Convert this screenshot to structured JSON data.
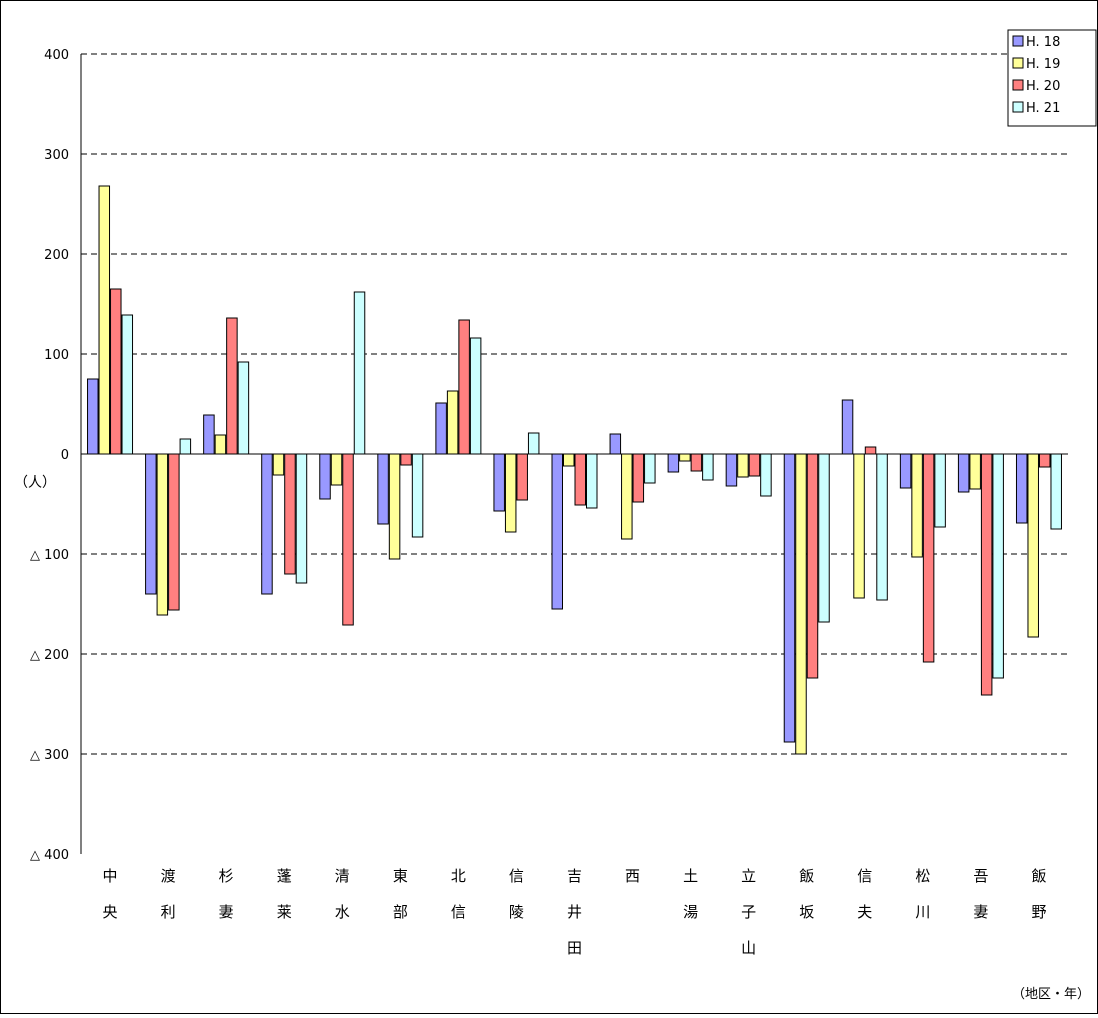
{
  "chart_data": {
    "type": "bar",
    "categories": [
      [
        "中",
        "央"
      ],
      [
        "渡",
        "利"
      ],
      [
        "杉",
        "妻"
      ],
      [
        "蓬",
        "莱"
      ],
      [
        "清",
        "水"
      ],
      [
        "東",
        "部"
      ],
      [
        "北",
        "信"
      ],
      [
        "信",
        "陵"
      ],
      [
        "吉",
        "井",
        "田"
      ],
      [
        "西"
      ],
      [
        "土",
        "湯"
      ],
      [
        "立",
        "子",
        "山"
      ],
      [
        "飯",
        "坂"
      ],
      [
        "信",
        "夫"
      ],
      [
        "松",
        "川"
      ],
      [
        "吾",
        "妻"
      ],
      [
        "飯",
        "野"
      ]
    ],
    "series": [
      {
        "name": "H. 18",
        "color": "#9999ff",
        "values": [
          75,
          -140,
          39,
          -140,
          -45,
          -70,
          51,
          -57,
          -155,
          20,
          -18,
          -32,
          -288,
          54,
          -34,
          -38,
          -69
        ]
      },
      {
        "name": "H. 19",
        "color": "#ffff99",
        "values": [
          268,
          -161,
          19,
          -21,
          -31,
          -105,
          63,
          -78,
          -12,
          -85,
          -7,
          -23,
          -300,
          -144,
          -103,
          -35,
          -183
        ]
      },
      {
        "name": "H. 20",
        "color": "#ff8080",
        "values": [
          165,
          -156,
          136,
          -120,
          -171,
          -11,
          134,
          -46,
          -51,
          -48,
          -17,
          -22,
          -224,
          7,
          -208,
          -241,
          -13
        ]
      },
      {
        "name": "H. 21",
        "color": "#ccffff",
        "values": [
          139,
          15,
          92,
          -129,
          162,
          -83,
          116,
          21,
          -54,
          -29,
          -26,
          -42,
          -168,
          -146,
          -73,
          -224,
          -75
        ]
      }
    ],
    "yticks": [
      {
        "value": 400,
        "label": "400"
      },
      {
        "value": 300,
        "label": "300"
      },
      {
        "value": 200,
        "label": "200"
      },
      {
        "value": 100,
        "label": "100"
      },
      {
        "value": 0,
        "label": "0"
      },
      {
        "value": -100,
        "label": "△ 100"
      },
      {
        "value": -200,
        "label": "△ 200"
      },
      {
        "value": -300,
        "label": "△ 300"
      },
      {
        "value": -400,
        "label": "△ 400"
      }
    ],
    "ylim": [
      -400,
      400
    ],
    "y_unit_label": "（人）",
    "x_unit_label": "（地区・年）",
    "grid": true,
    "legend_position": "top-right"
  }
}
